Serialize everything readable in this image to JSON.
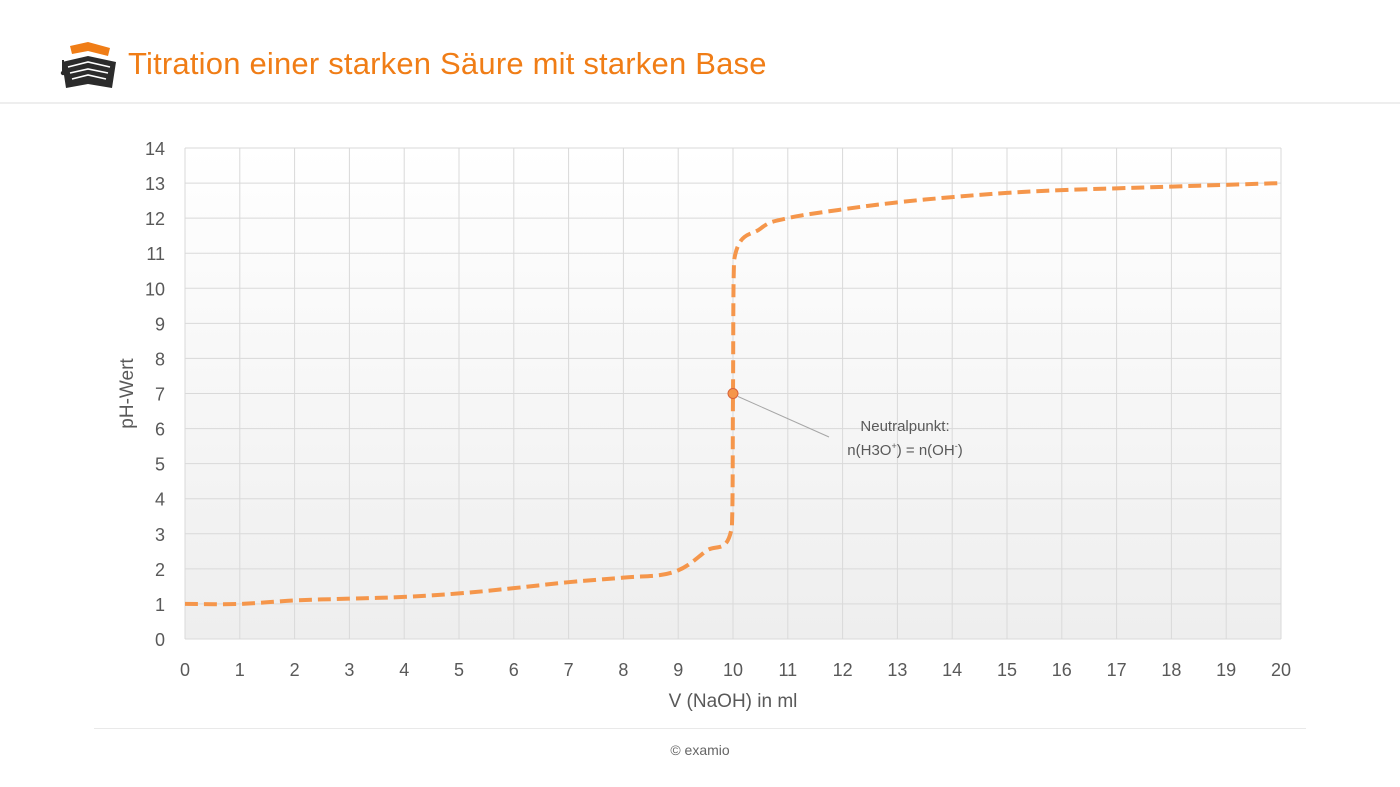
{
  "header": {
    "title": "Titration einer starken Säure mit starken Base"
  },
  "logo": {
    "icon": "graduation-cap-book-logo",
    "colors": {
      "cap": "#f07d16",
      "book": "#2b2b2b"
    }
  },
  "footer": {
    "copyright": "© examio"
  },
  "chart_data": {
    "type": "line",
    "title": "",
    "xlabel": "V (NaOH) in ml",
    "ylabel": "pH-Wert",
    "xlim": [
      0,
      20
    ],
    "ylim": [
      0,
      14
    ],
    "xticks": [
      0,
      1,
      2,
      3,
      4,
      5,
      6,
      7,
      8,
      9,
      10,
      11,
      12,
      13,
      14,
      15,
      16,
      17,
      18,
      19,
      20
    ],
    "yticks": [
      0,
      1,
      2,
      3,
      4,
      5,
      6,
      7,
      8,
      9,
      10,
      11,
      12,
      13,
      14
    ],
    "grid": true,
    "line_style": "dashed",
    "colors": {
      "line": "#f5964b",
      "grid": "#d9d9d9",
      "tick_text": "#595959",
      "background_top": "#ffffff",
      "background_bottom": "#eeeeee"
    },
    "series": [
      {
        "x": [
          0,
          1,
          2,
          3,
          4,
          5,
          6,
          7,
          8,
          8.9,
          9.5,
          9.98,
          10,
          10.02,
          10.5,
          11,
          12,
          13,
          14,
          15,
          16,
          17,
          18,
          19,
          20
        ],
        "y": [
          1.0,
          1.0,
          1.1,
          1.15,
          1.2,
          1.3,
          1.45,
          1.62,
          1.75,
          1.9,
          2.5,
          3.2,
          7.0,
          10.8,
          11.7,
          12.0,
          12.25,
          12.45,
          12.6,
          12.72,
          12.8,
          12.85,
          12.9,
          12.95,
          13.0
        ]
      }
    ],
    "marker": {
      "x": 10,
      "y": 7,
      "color": "#f5964b"
    },
    "annotation": {
      "line1": "Neutralpunkt:",
      "line2_a": "n(H3O",
      "line2_sup_a": "+",
      "line2_b": ") = n(OH",
      "line2_sup_b": "-",
      "line2_c": ")"
    }
  }
}
